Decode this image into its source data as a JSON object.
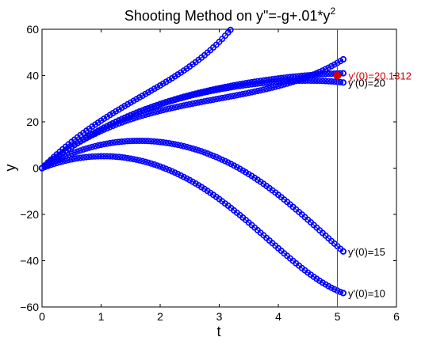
{
  "chart_data": {
    "type": "line",
    "title": "Shooting Method on y\"=-g+.01*y",
    "title_superscript": "2",
    "xlabel": "t",
    "ylabel": "y",
    "xlim": [
      0,
      6
    ],
    "ylim": [
      -60,
      60
    ],
    "xticks": [
      0,
      1,
      2,
      3,
      4,
      5,
      6
    ],
    "yticks": [
      -60,
      -40,
      -20,
      0,
      20,
      40,
      60
    ],
    "grid": false,
    "marker": "circle",
    "series_color": "#0000ff",
    "highlight_color": "#cc0000",
    "vertical_line_x": 5,
    "t_end": 5.1,
    "series": [
      {
        "name": "y'(0)=10",
        "initial_slope": 10,
        "end_value": -54
      },
      {
        "name": "y'(0)=15",
        "initial_slope": 15,
        "end_value": -36
      },
      {
        "name": "y'(0)=20",
        "initial_slope": 20,
        "end_value": 37
      },
      {
        "initial_slope": 20.1312,
        "end_value": 41
      },
      {
        "initial_slope": 21,
        "end_value": 47
      },
      {
        "initial_slope": 25,
        "end_value": 60
      }
    ],
    "target_point": {
      "label": "y'(0)=20.1312",
      "x": 5,
      "y": 40
    }
  }
}
